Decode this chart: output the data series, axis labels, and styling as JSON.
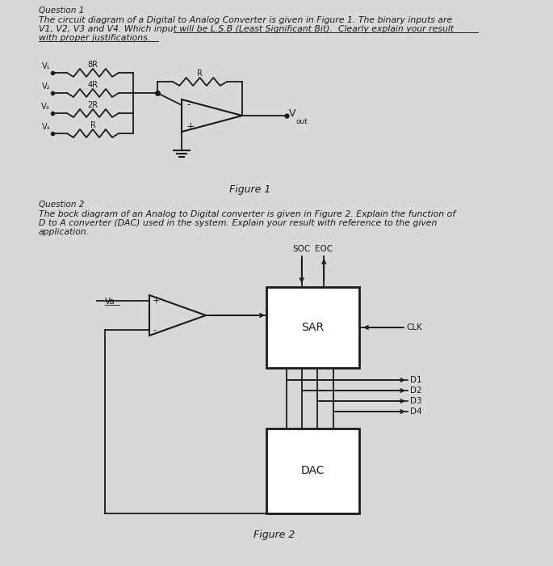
{
  "bg_color": "#d8d8d8",
  "paper_color": "#f2f1ec",
  "q1_label": "Question 1",
  "q1_line1": "The circuit diagram of a Digital to Analog Converter is given in Figure 1. The binary inputs are",
  "q1_line2": "V1, V2, V3 and V4. Which input will be L.S.B (Least Significant Bit).  Clearly explain your result",
  "q1_line3": "with proper justifications.",
  "fig1_label": "Figure 1",
  "q2_label": "Question 2",
  "q2_line1": "The bock diagram of an Analog to Digital converter is given in Figure 2. Explain the function of",
  "q2_line2": "D to A converter (DAC) used in the system. Explain your result with reference to the given",
  "q2_line3": "application.",
  "fig2_label": "Figure 2",
  "lc": "#1a1a1a"
}
